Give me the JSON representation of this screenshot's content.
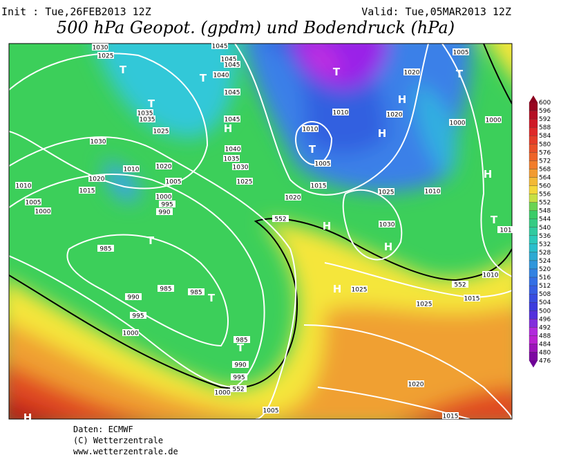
{
  "header": {
    "init": "Init : Tue,26FEB2013 12Z",
    "valid": "Valid: Tue,05MAR2013 12Z",
    "title": "500 hPa Geopot. (gpdm) und Bodendruck (hPa)"
  },
  "colorbar": {
    "ticks": [
      600,
      596,
      592,
      588,
      584,
      580,
      576,
      572,
      568,
      564,
      560,
      556,
      552,
      548,
      544,
      540,
      536,
      532,
      528,
      524,
      520,
      516,
      512,
      508,
      504,
      500,
      496,
      492,
      488,
      484,
      480,
      476
    ]
  },
  "map_labels": [
    "1030",
    "1025",
    "T",
    "T",
    "1035",
    "1035",
    "1025",
    "1030",
    "1010",
    "1020",
    "1005",
    "1020",
    "1010",
    "1015",
    "1005",
    "1000",
    "1000",
    "995",
    "990",
    "T",
    "985",
    "985",
    "985",
    "T",
    "990",
    "995",
    "1000",
    "985",
    "T",
    "990",
    "995",
    "1000",
    "1005",
    "1045",
    "1045",
    "1045",
    "1040",
    "T",
    "1045",
    "1045",
    "H",
    "1040",
    "1035",
    "1030",
    "1025",
    "T",
    "1010",
    "1010",
    "T",
    "1005",
    "1015",
    "1020",
    "1025",
    "1030",
    "1010",
    "1005",
    "T",
    "1020",
    "1020",
    "H",
    "H",
    "1000",
    "1000",
    "H",
    "T",
    "101",
    "H",
    "H",
    "H",
    "1025",
    "1025",
    "1015",
    "1010",
    "1020",
    "1015",
    "H",
    "552",
    "552",
    "552"
  ],
  "footer": [
    "Daten: ECMWF",
    "(C) Wetterzentrale",
    "www.wetterzentrale.de"
  ]
}
